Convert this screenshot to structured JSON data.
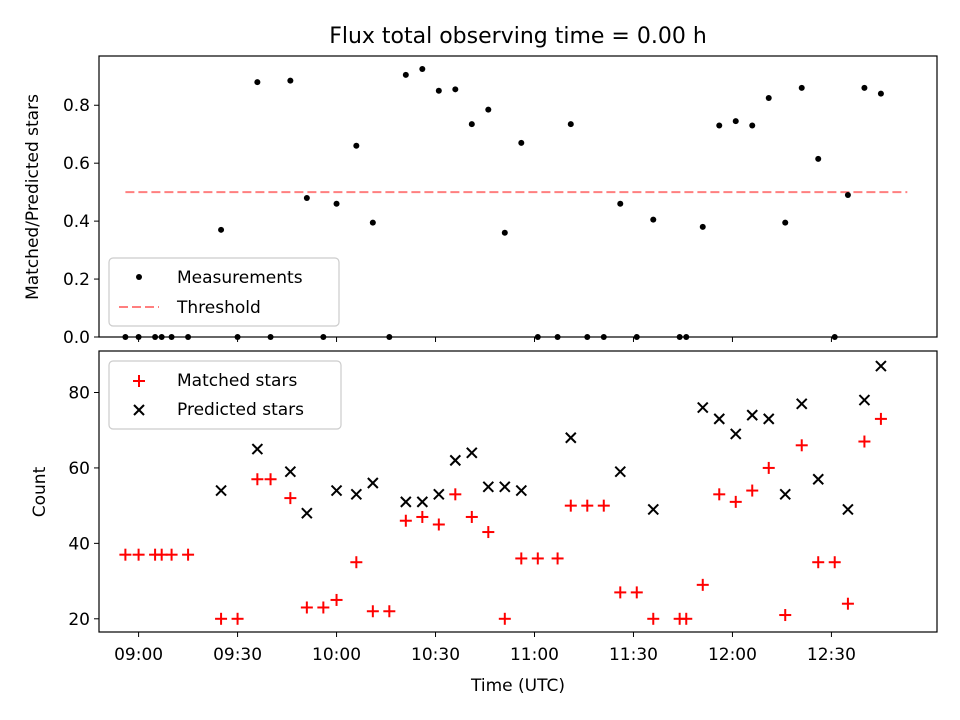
{
  "chart_data": [
    {
      "type": "scatter",
      "title": "Flux total observing time = 0.00 h",
      "xlabel": "",
      "ylabel": "Matched/Predicted stars",
      "xlim": [
        "08:48",
        "13:02"
      ],
      "ylim": [
        0,
        0.97
      ],
      "yticks": [
        "0.0",
        "0.2",
        "0.4",
        "0.6",
        "0.8"
      ],
      "ytick_values": [
        0,
        0.2,
        0.4,
        0.6,
        0.8
      ],
      "legend": [
        "Measurements",
        "Threshold"
      ],
      "legend_position": "lower-left",
      "colors": {
        "measurements": "#000000",
        "threshold": "#ff7f7f"
      },
      "threshold": {
        "name": "Threshold",
        "value": 0.5,
        "x_start": "08:56",
        "x_end": "12:53"
      },
      "series": [
        {
          "name": "Measurements",
          "x": [
            "08:56",
            "09:00",
            "09:05",
            "09:07",
            "09:10",
            "09:15",
            "09:25",
            "09:30",
            "09:36",
            "09:40",
            "09:46",
            "09:51",
            "09:56",
            "10:00",
            "10:06",
            "10:11",
            "10:16",
            "10:21",
            "10:26",
            "10:31",
            "10:36",
            "10:41",
            "10:46",
            "10:51",
            "10:56",
            "11:01",
            "11:07",
            "11:11",
            "11:16",
            "11:21",
            "11:26",
            "11:31",
            "11:36",
            "11:44",
            "11:46",
            "11:51",
            "11:56",
            "12:01",
            "12:06",
            "12:11",
            "12:16",
            "12:21",
            "12:26",
            "12:31",
            "12:35",
            "12:40",
            "12:45"
          ],
          "y": [
            0.0,
            0.0,
            0.0,
            0.0,
            0.0,
            0.0,
            0.37,
            0.0,
            0.88,
            0.0,
            0.885,
            0.48,
            0.0,
            0.46,
            0.66,
            0.395,
            0.0,
            0.905,
            0.925,
            0.85,
            0.855,
            0.735,
            0.785,
            0.36,
            0.67,
            0.0,
            0.0,
            0.735,
            0.0,
            0.0,
            0.46,
            0.0,
            0.405,
            0.0,
            0.0,
            0.38,
            0.73,
            0.745,
            0.73,
            0.825,
            0.395,
            0.86,
            0.615,
            0.0,
            0.49,
            0.86,
            0.84
          ]
        }
      ]
    },
    {
      "type": "scatter",
      "title": "",
      "xlabel": "Time (UTC)",
      "ylabel": "Count",
      "xlim": [
        "08:48",
        "13:02"
      ],
      "ylim": [
        16.5,
        91
      ],
      "xticks": [
        "09:00",
        "09:30",
        "10:00",
        "10:30",
        "11:00",
        "11:30",
        "12:00",
        "12:30"
      ],
      "yticks": [
        "20",
        "40",
        "60",
        "80"
      ],
      "ytick_values": [
        20,
        40,
        60,
        80
      ],
      "legend": [
        "Matched stars",
        "Predicted stars"
      ],
      "legend_position": "top-left",
      "colors": {
        "matched": "#ff0000",
        "predicted": "#000000"
      },
      "series": [
        {
          "name": "Matched stars",
          "marker": "+",
          "x": [
            "08:56",
            "09:00",
            "09:05",
            "09:07",
            "09:10",
            "09:15",
            "09:25",
            "09:30",
            "09:36",
            "09:40",
            "09:46",
            "09:51",
            "09:56",
            "10:00",
            "10:06",
            "10:11",
            "10:16",
            "10:21",
            "10:26",
            "10:31",
            "10:36",
            "10:41",
            "10:46",
            "10:51",
            "10:56",
            "11:01",
            "11:07",
            "11:11",
            "11:16",
            "11:21",
            "11:26",
            "11:31",
            "11:36",
            "11:44",
            "11:46",
            "11:51",
            "11:56",
            "12:01",
            "12:06",
            "12:11",
            "12:16",
            "12:21",
            "12:26",
            "12:31",
            "12:35",
            "12:40",
            "12:45"
          ],
          "y": [
            37,
            37,
            37,
            37,
            37,
            37,
            20,
            20,
            57,
            57,
            52,
            23,
            23,
            25,
            35,
            22,
            22,
            46,
            47,
            45,
            53,
            47,
            43,
            20,
            36,
            36,
            36,
            50,
            50,
            50,
            27,
            27,
            20,
            20,
            20,
            29,
            53,
            51,
            54,
            60,
            21,
            66,
            35,
            35,
            24,
            67,
            73
          ]
        },
        {
          "name": "Predicted stars",
          "marker": "x",
          "x": [
            "09:25",
            "09:36",
            "09:46",
            "09:51",
            "10:00",
            "10:06",
            "10:11",
            "10:21",
            "10:26",
            "10:31",
            "10:36",
            "10:41",
            "10:46",
            "10:51",
            "10:56",
            "11:11",
            "11:26",
            "11:36",
            "11:51",
            "11:56",
            "12:01",
            "12:06",
            "12:11",
            "12:16",
            "12:21",
            "12:26",
            "12:35",
            "12:40",
            "12:45"
          ],
          "y": [
            54,
            65,
            59,
            48,
            54,
            53,
            56,
            51,
            51,
            53,
            62,
            64,
            55,
            55,
            54,
            68,
            59,
            49,
            76,
            73,
            69,
            74,
            73,
            53,
            77,
            57,
            49,
            78,
            87
          ]
        }
      ]
    }
  ]
}
